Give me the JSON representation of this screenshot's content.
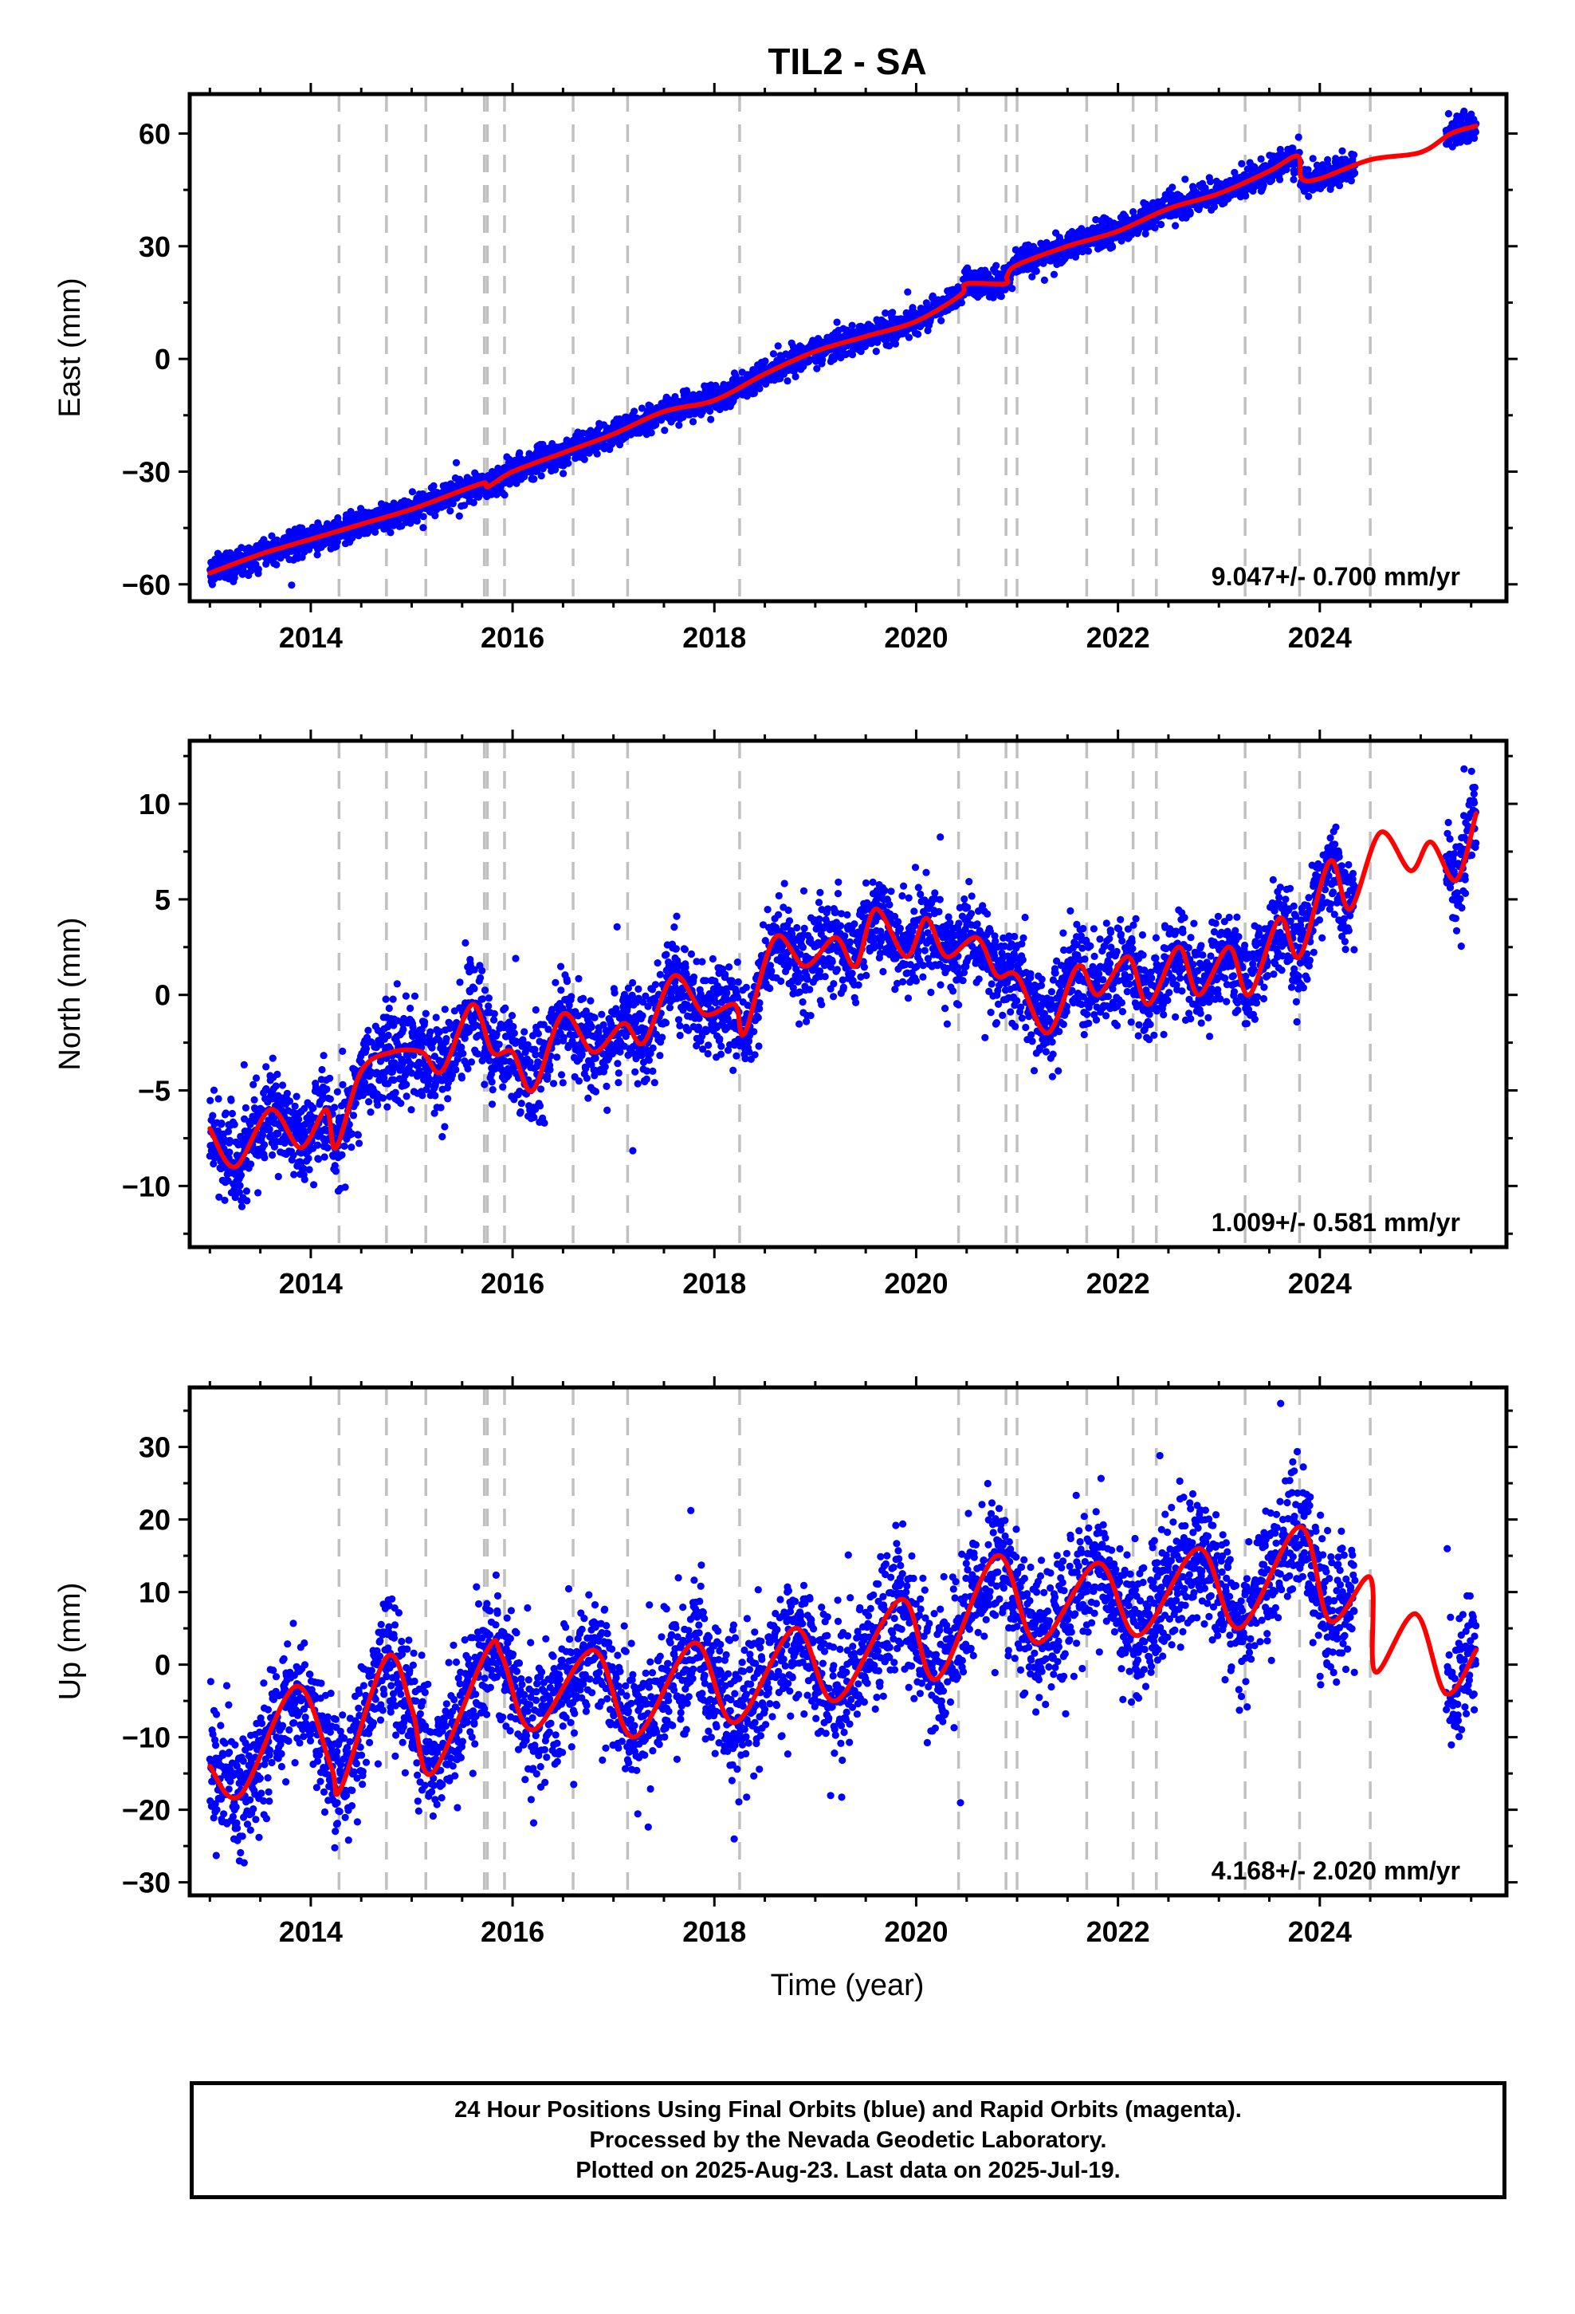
{
  "figure": {
    "title": "TIL2 - SA",
    "xlabel": "Time (year)"
  },
  "footer": {
    "lines": [
      "24 Hour Positions Using Final Orbits (blue) and Rapid Orbits (magenta).",
      "Processed by the Nevada Geodetic Laboratory.",
      "Plotted on 2025-Aug-23. Last data on 2025-Jul-19."
    ]
  },
  "colors": {
    "data": "#0000ff",
    "model": "#ff0000",
    "event_lines": "#c0c0c0",
    "axes": "#000000"
  },
  "chart_data": [
    {
      "type": "scatter",
      "name": "east",
      "ylabel": "East (mm)",
      "rate_label": "9.047+/- 0.700 mm/yr",
      "xlim": [
        2012.8,
        2025.85
      ],
      "ylim": [
        -64.5,
        70.5
      ],
      "xticks": [
        2014,
        2016,
        2018,
        2020,
        2022,
        2024
      ],
      "yticks": [
        -60,
        -30,
        0,
        30,
        60
      ],
      "data_span": [
        2013.0,
        2025.55
      ],
      "trend": {
        "rate": 9.047,
        "value_at_2019": 0
      },
      "noise_sd": 1.8,
      "model_curve": [
        [
          2013.0,
          -57
        ],
        [
          2013.5,
          -52
        ],
        [
          2014.0,
          -48
        ],
        [
          2014.5,
          -44
        ],
        [
          2015.0,
          -40
        ],
        [
          2015.5,
          -35
        ],
        [
          2015.72,
          -33
        ],
        [
          2015.76,
          -34
        ],
        [
          2016.0,
          -30
        ],
        [
          2016.5,
          -25
        ],
        [
          2017.0,
          -20
        ],
        [
          2017.5,
          -14
        ],
        [
          2018.0,
          -11
        ],
        [
          2018.5,
          -4
        ],
        [
          2019.0,
          2
        ],
        [
          2019.5,
          6
        ],
        [
          2020.0,
          10
        ],
        [
          2020.44,
          17
        ],
        [
          2020.5,
          20
        ],
        [
          2020.88,
          20
        ],
        [
          2020.9,
          22
        ],
        [
          2021.0,
          25
        ],
        [
          2021.5,
          30
        ],
        [
          2022.0,
          34
        ],
        [
          2022.5,
          40
        ],
        [
          2023.0,
          44
        ],
        [
          2023.5,
          50
        ],
        [
          2023.78,
          54
        ],
        [
          2023.82,
          48
        ],
        [
          2024.0,
          48
        ],
        [
          2024.5,
          53
        ],
        [
          2025.0,
          55
        ],
        [
          2025.3,
          60
        ],
        [
          2025.55,
          62
        ]
      ]
    },
    {
      "type": "scatter",
      "name": "north",
      "ylabel": "North (mm)",
      "rate_label": "1.009+/- 0.581 mm/yr",
      "xlim": [
        2012.8,
        2025.85
      ],
      "ylim": [
        -13.2,
        13.3
      ],
      "xticks": [
        2014,
        2016,
        2018,
        2020,
        2022,
        2024
      ],
      "yticks": [
        -10,
        -5,
        0,
        5,
        10
      ],
      "data_span": [
        2013.0,
        2025.55
      ],
      "trend": {
        "rate": 1.009,
        "value_at_2019": 1.5
      },
      "noise_sd": 1.2,
      "model_curve": [
        [
          2013.0,
          -7
        ],
        [
          2013.25,
          -9
        ],
        [
          2013.6,
          -6
        ],
        [
          2013.9,
          -8
        ],
        [
          2014.15,
          -6
        ],
        [
          2014.25,
          -8
        ],
        [
          2014.5,
          -4
        ],
        [
          2014.8,
          -3
        ],
        [
          2015.1,
          -3
        ],
        [
          2015.3,
          -4
        ],
        [
          2015.6,
          -0.5
        ],
        [
          2015.8,
          -3
        ],
        [
          2016.0,
          -3
        ],
        [
          2016.2,
          -5
        ],
        [
          2016.5,
          -1
        ],
        [
          2016.8,
          -3
        ],
        [
          2017.1,
          -1.5
        ],
        [
          2017.3,
          -2.5
        ],
        [
          2017.6,
          1
        ],
        [
          2017.9,
          -1
        ],
        [
          2018.2,
          -0.5
        ],
        [
          2018.3,
          -2
        ],
        [
          2018.6,
          3
        ],
        [
          2018.9,
          1.5
        ],
        [
          2019.2,
          3
        ],
        [
          2019.4,
          1.5
        ],
        [
          2019.6,
          4.5
        ],
        [
          2019.9,
          2
        ],
        [
          2020.1,
          4
        ],
        [
          2020.3,
          2
        ],
        [
          2020.6,
          3
        ],
        [
          2020.8,
          1
        ],
        [
          2021.0,
          1
        ],
        [
          2021.3,
          -2
        ],
        [
          2021.6,
          1.5
        ],
        [
          2021.8,
          0
        ],
        [
          2022.1,
          2
        ],
        [
          2022.3,
          -0.5
        ],
        [
          2022.6,
          2.5
        ],
        [
          2022.8,
          0
        ],
        [
          2023.1,
          2.5
        ],
        [
          2023.3,
          0
        ],
        [
          2023.6,
          4
        ],
        [
          2023.8,
          2
        ],
        [
          2024.1,
          7
        ],
        [
          2024.3,
          4.5
        ],
        [
          2024.6,
          8.5
        ],
        [
          2024.9,
          6.5
        ],
        [
          2025.1,
          8
        ],
        [
          2025.35,
          6
        ],
        [
          2025.55,
          9.5
        ]
      ]
    },
    {
      "type": "scatter",
      "name": "up",
      "ylabel": "Up (mm)",
      "rate_label": "4.168+/- 2.020 mm/yr",
      "xlim": [
        2012.8,
        2025.85
      ],
      "ylim": [
        -31.8,
        38.2
      ],
      "xticks": [
        2014,
        2016,
        2018,
        2020,
        2022,
        2024
      ],
      "yticks": [
        -30,
        -20,
        -10,
        0,
        10,
        20,
        30
      ],
      "data_span": [
        2013.0,
        2025.55
      ],
      "trend": {
        "rate": 4.168,
        "value_at_2019": 0
      },
      "noise_sd": 4.5,
      "model_curve": [
        [
          2013.0,
          -14
        ],
        [
          2013.3,
          -18
        ],
        [
          2013.85,
          -3
        ],
        [
          2014.2,
          -14
        ],
        [
          2014.3,
          -17
        ],
        [
          2014.75,
          1
        ],
        [
          2015.0,
          -6
        ],
        [
          2015.2,
          -15
        ],
        [
          2015.75,
          2
        ],
        [
          2015.9,
          1
        ],
        [
          2016.2,
          -9
        ],
        [
          2016.8,
          2
        ],
        [
          2017.2,
          -10
        ],
        [
          2017.8,
          3
        ],
        [
          2018.2,
          -8
        ],
        [
          2018.8,
          5
        ],
        [
          2019.2,
          -5
        ],
        [
          2019.85,
          9
        ],
        [
          2020.2,
          -2
        ],
        [
          2020.8,
          15
        ],
        [
          2021.2,
          3
        ],
        [
          2021.8,
          14
        ],
        [
          2022.2,
          4
        ],
        [
          2022.8,
          16
        ],
        [
          2023.2,
          5
        ],
        [
          2023.8,
          19
        ],
        [
          2024.1,
          6
        ],
        [
          2024.5,
          12
        ],
        [
          2024.55,
          -1
        ],
        [
          2024.95,
          7
        ],
        [
          2025.25,
          -4
        ],
        [
          2025.55,
          2
        ]
      ]
    }
  ],
  "event_lines": [
    2014.28,
    2014.75,
    2015.14,
    2015.72,
    2015.75,
    2015.92,
    2016.6,
    2017.14,
    2018.25,
    2020.42,
    2020.89,
    2021.0,
    2021.69,
    2022.15,
    2022.38,
    2023.26,
    2023.8,
    2024.5
  ]
}
